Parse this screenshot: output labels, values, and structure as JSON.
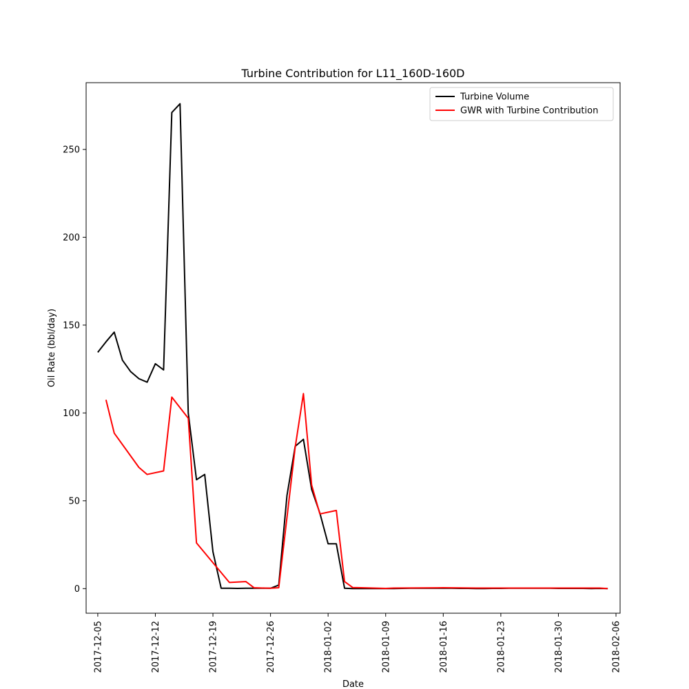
{
  "chart_data": {
    "type": "line",
    "title": "Turbine Contribution for L11_160D-160D",
    "xlabel": "Date",
    "ylabel": "Oil Rate (bbl/day)",
    "xlim": [
      "2017-12-03 14:00",
      "2018-02-06 12:00"
    ],
    "ylim": [
      -14,
      288
    ],
    "x_ticks": [
      "2017-12-05",
      "2017-12-12",
      "2017-12-19",
      "2017-12-26",
      "2018-01-02",
      "2018-01-09",
      "2018-01-16",
      "2018-01-23",
      "2018-01-30",
      "2018-02-06"
    ],
    "y_ticks": [
      0,
      50,
      100,
      150,
      200,
      250
    ],
    "grid": false,
    "legend_position": "top-right",
    "series": [
      {
        "name": "Turbine Volume",
        "color": "#000000",
        "x": [
          "2017-12-05",
          "2017-12-06",
          "2017-12-07",
          "2017-12-08",
          "2017-12-09",
          "2017-12-10",
          "2017-12-11",
          "2017-12-12",
          "2017-12-13",
          "2017-12-14",
          "2017-12-15",
          "2017-12-16",
          "2017-12-17",
          "2017-12-18",
          "2017-12-19",
          "2017-12-20",
          "2017-12-21",
          "2017-12-22",
          "2017-12-23",
          "2017-12-24",
          "2017-12-25",
          "2017-12-26",
          "2017-12-27",
          "2017-12-28",
          "2017-12-29",
          "2017-12-30",
          "2017-12-31",
          "2018-01-01",
          "2018-01-02",
          "2018-01-03",
          "2018-01-04",
          "2018-01-05",
          "2018-01-06",
          "2018-01-07",
          "2018-01-08",
          "2018-01-09",
          "2018-01-10",
          "2018-01-11",
          "2018-01-12",
          "2018-01-13",
          "2018-01-14",
          "2018-01-15",
          "2018-01-16",
          "2018-01-17",
          "2018-01-18",
          "2018-01-19",
          "2018-01-20",
          "2018-01-21",
          "2018-01-22",
          "2018-01-23",
          "2018-01-24",
          "2018-01-25",
          "2018-01-26",
          "2018-01-27",
          "2018-01-28",
          "2018-01-29",
          "2018-01-30",
          "2018-01-31",
          "2018-02-01",
          "2018-02-02",
          "2018-02-03",
          "2018-02-04",
          "2018-02-05"
        ],
        "values": [
          134.5,
          140.5,
          146,
          130,
          123.5,
          119.5,
          117.5,
          128,
          124.5,
          271,
          276,
          100,
          62,
          65,
          21,
          0.2,
          0.2,
          0.1,
          0.2,
          0.2,
          0.2,
          0.2,
          2,
          53,
          81,
          85,
          56.5,
          43,
          25.5,
          25.5,
          0.2,
          0,
          0,
          0,
          0,
          0,
          0,
          0.1,
          0.2,
          0.2,
          0.2,
          0.2,
          0.2,
          0.2,
          0.1,
          0.1,
          0,
          0,
          0.1,
          0.1,
          0.2,
          0.2,
          0.2,
          0.2,
          0.2,
          0.2,
          0.1,
          0.1,
          0.1,
          0.1,
          0,
          0.1,
          0
        ]
      },
      {
        "name": "GWR with Turbine Contribution",
        "color": "#ff0000",
        "x": [
          "2017-12-06",
          "2017-12-07",
          "2017-12-10",
          "2017-12-11",
          "2017-12-13",
          "2017-12-14",
          "2017-12-16",
          "2017-12-17",
          "2017-12-21",
          "2017-12-23",
          "2017-12-24",
          "2017-12-26",
          "2017-12-27",
          "2017-12-29",
          "2017-12-30",
          "2017-12-31",
          "2018-01-01",
          "2018-01-02",
          "2018-01-03",
          "2018-01-04",
          "2018-01-05",
          "2018-01-06",
          "2018-01-09",
          "2018-01-10",
          "2018-01-16",
          "2018-01-20",
          "2018-02-04",
          "2018-02-05"
        ],
        "values": [
          107.5,
          88.5,
          69,
          65,
          67,
          109,
          97,
          26,
          3.5,
          4,
          0.5,
          0.2,
          0.5,
          80.5,
          111,
          59,
          42.5,
          43.5,
          44.5,
          4,
          0.6,
          0.5,
          0.1,
          0.3,
          0.5,
          0.3,
          0.3,
          0
        ]
      }
    ]
  }
}
